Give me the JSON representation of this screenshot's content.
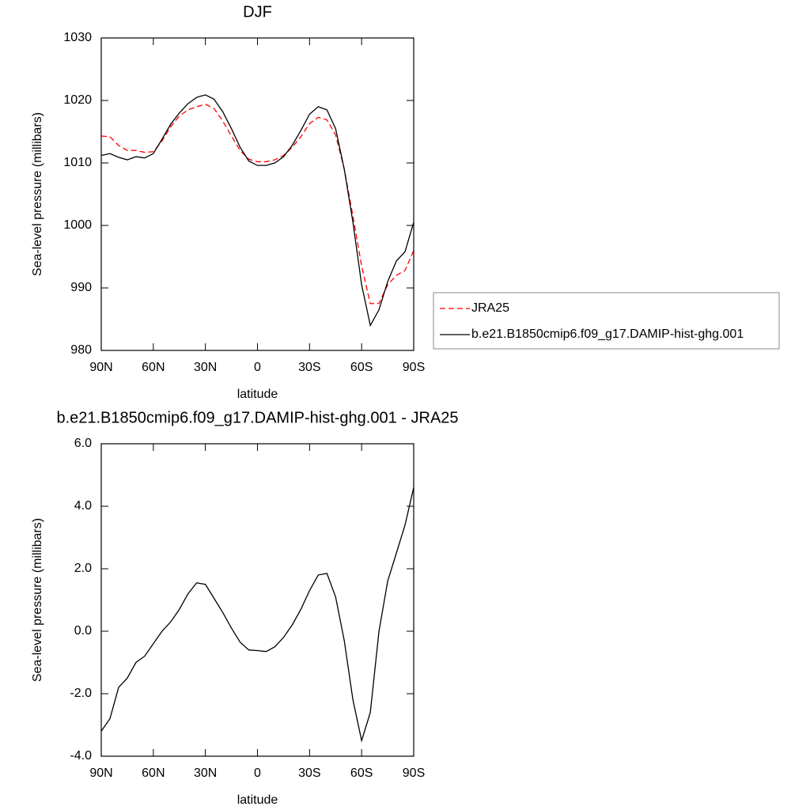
{
  "chart_data": [
    {
      "type": "line",
      "title": "DJF",
      "xlabel": "latitude",
      "ylabel": "Sea-level pressure (millibars)",
      "x": [
        90,
        85,
        80,
        75,
        70,
        65,
        60,
        55,
        50,
        45,
        40,
        35,
        30,
        25,
        20,
        15,
        10,
        5,
        0,
        -5,
        -10,
        -15,
        -20,
        -25,
        -30,
        -35,
        -40,
        -45,
        -50,
        -55,
        -60,
        -65,
        -70,
        -75,
        -80,
        -85,
        -90
      ],
      "series": [
        {
          "name": "JRA25",
          "color": "#ff0000",
          "dashed": true,
          "values": [
            1014.3,
            1014.2,
            1012.8,
            1012.0,
            1012.0,
            1011.7,
            1011.8,
            1013.5,
            1015.8,
            1017.5,
            1018.5,
            1019.0,
            1019.4,
            1018.7,
            1016.7,
            1014.3,
            1012.0,
            1010.6,
            1010.2,
            1010.2,
            1010.5,
            1011.2,
            1012.5,
            1014.2,
            1016.3,
            1017.3,
            1016.9,
            1014.5,
            1009.0,
            1001.5,
            993.5,
            987.5,
            987.5,
            990.5,
            992.0,
            992.8,
            996.0
          ]
        },
        {
          "name": "b.e21.B1850cmip6.f09_g17.DAMIP-hist-ghg.001",
          "color": "#000000",
          "dashed": false,
          "values": [
            1011.2,
            1011.5,
            1010.9,
            1010.5,
            1011.0,
            1010.8,
            1011.5,
            1013.8,
            1016.2,
            1018.0,
            1019.5,
            1020.5,
            1020.9,
            1020.2,
            1018.2,
            1015.5,
            1012.5,
            1010.3,
            1009.6,
            1009.6,
            1010.0,
            1011.0,
            1012.8,
            1015.2,
            1017.8,
            1019.0,
            1018.5,
            1015.5,
            1009.0,
            1000.5,
            990.5,
            984.0,
            986.5,
            991.0,
            994.3,
            995.8,
            1000.5
          ]
        }
      ],
      "xlim": [
        90,
        -90
      ],
      "xticks": [
        {
          "value": 90,
          "label": "90N"
        },
        {
          "value": 60,
          "label": "60N"
        },
        {
          "value": 30,
          "label": "30N"
        },
        0,
        {
          "value": -30,
          "label": "30S"
        },
        {
          "value": -60,
          "label": "60S"
        },
        {
          "value": -90,
          "label": "90S"
        }
      ],
      "ylim": [
        980,
        1030
      ],
      "yticks": [
        980,
        990,
        1000,
        1010,
        1020,
        1030
      ],
      "legend": "right"
    },
    {
      "type": "line",
      "title": "b.e21.B1850cmip6.f09_g17.DAMIP-hist-ghg.001 - JRA25",
      "xlabel": "latitude",
      "ylabel": "Sea-level pressure (millibars)",
      "x": [
        90,
        85,
        80,
        75,
        70,
        65,
        60,
        55,
        50,
        45,
        40,
        35,
        30,
        25,
        20,
        15,
        10,
        5,
        0,
        -5,
        -10,
        -15,
        -20,
        -25,
        -30,
        -35,
        -40,
        -45,
        -50,
        -55,
        -60,
        -65,
        -70,
        -75,
        -80,
        -85,
        -90
      ],
      "color": "#000000",
      "values": [
        -3.2,
        -2.8,
        -1.8,
        -1.5,
        -1.0,
        -0.8,
        -0.4,
        0.0,
        0.3,
        0.7,
        1.2,
        1.55,
        1.5,
        1.05,
        0.6,
        0.1,
        -0.35,
        -0.6,
        -0.62,
        -0.65,
        -0.5,
        -0.2,
        0.2,
        0.7,
        1.3,
        1.8,
        1.85,
        1.1,
        -0.3,
        -2.2,
        -3.5,
        -2.6,
        0.0,
        1.6,
        2.5,
        3.4,
        4.6
      ],
      "xlim": [
        90,
        -90
      ],
      "xticks": [
        {
          "value": 90,
          "label": "90N"
        },
        {
          "value": 60,
          "label": "60N"
        },
        {
          "value": 30,
          "label": "30N"
        },
        0,
        {
          "value": -30,
          "label": "30S"
        },
        {
          "value": -60,
          "label": "60S"
        },
        {
          "value": -90,
          "label": "90S"
        }
      ],
      "ylim": [
        -4,
        6
      ],
      "yticks": [
        {
          "value": -4,
          "label": "-4.0"
        },
        {
          "value": -2,
          "label": "-2.0"
        },
        {
          "value": 0,
          "label": "0.0"
        },
        {
          "value": 2,
          "label": "2.0"
        },
        {
          "value": 4,
          "label": "4.0"
        },
        {
          "value": 6,
          "label": "6.0"
        }
      ]
    }
  ]
}
